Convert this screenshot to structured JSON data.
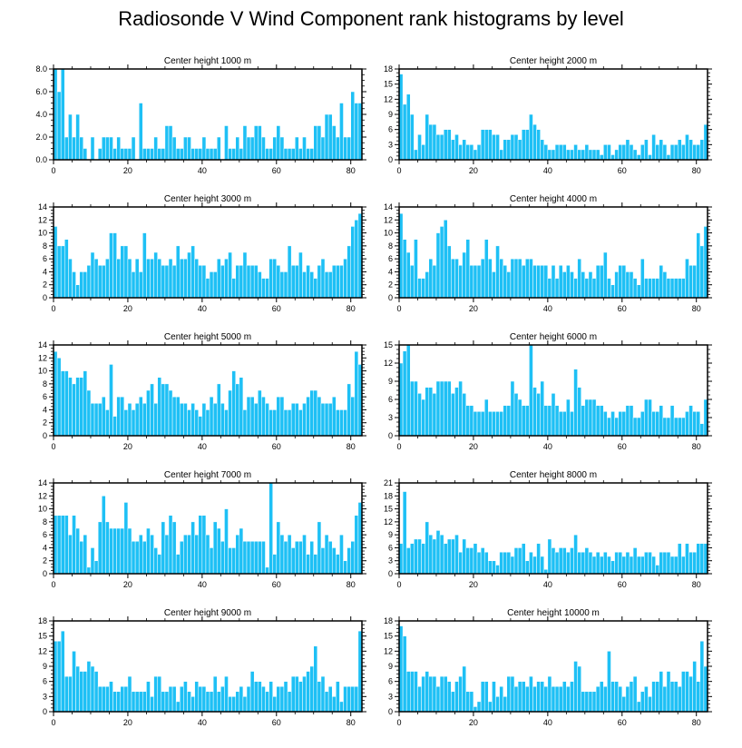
{
  "title": "Radiosonde V Wind Component rank histograms by level",
  "colors": {
    "bar": "#1ec0f5",
    "bar_edge": "#ffffff",
    "axis": "#000000",
    "background": "#ffffff"
  },
  "chart_data": [
    {
      "type": "bar",
      "title": "Center height 1000 m",
      "xlim": [
        0,
        83
      ],
      "ylim": [
        0,
        8
      ],
      "yticks": [
        0,
        2,
        4,
        6,
        8
      ],
      "ytick_labels": [
        "0.0",
        "2.0",
        "4.0",
        "6.0",
        "8.0"
      ],
      "xticks": [
        0,
        20,
        40,
        60,
        80
      ],
      "values": [
        8,
        6,
        8,
        2,
        4,
        2,
        4,
        2,
        1,
        0,
        2,
        0,
        1,
        2,
        2,
        2,
        1,
        2,
        1,
        1,
        1,
        2,
        0,
        5,
        1,
        1,
        1,
        2,
        1,
        1,
        3,
        3,
        2,
        1,
        1,
        2,
        2,
        1,
        1,
        1,
        2,
        1,
        1,
        1,
        2,
        0,
        3,
        1,
        1,
        2,
        1,
        3,
        2,
        2,
        3,
        3,
        2,
        1,
        1,
        2,
        3,
        2,
        1,
        1,
        1,
        2,
        1,
        2,
        1,
        1,
        3,
        3,
        2,
        4,
        4,
        3,
        2,
        5,
        2,
        2,
        6,
        5,
        5
      ]
    },
    {
      "type": "bar",
      "title": "Center height 2000 m",
      "xlim": [
        0,
        83
      ],
      "ylim": [
        0,
        18
      ],
      "yticks": [
        0,
        3,
        6,
        9,
        12,
        15,
        18
      ],
      "ytick_labels": [
        "0",
        "3",
        "6",
        "9",
        "12",
        "15",
        "18"
      ],
      "xticks": [
        0,
        20,
        40,
        60,
        80
      ],
      "values": [
        17,
        11,
        13,
        9,
        2,
        5,
        3,
        9,
        7,
        7,
        5,
        5,
        6,
        6,
        4,
        5,
        3,
        4,
        3,
        3,
        2,
        3,
        6,
        6,
        6,
        5,
        5,
        2,
        4,
        4,
        5,
        5,
        4,
        6,
        6,
        9,
        7,
        6,
        4,
        3,
        2,
        2,
        3,
        3,
        3,
        2,
        2,
        3,
        2,
        2,
        3,
        2,
        2,
        2,
        1,
        3,
        3,
        1,
        2,
        3,
        3,
        4,
        3,
        2,
        1,
        3,
        4,
        1,
        5,
        3,
        4,
        3,
        1,
        3,
        3,
        4,
        3,
        5,
        4,
        3,
        3,
        4,
        7
      ]
    },
    {
      "type": "bar",
      "title": "Center height 3000 m",
      "xlim": [
        0,
        83
      ],
      "ylim": [
        0,
        14
      ],
      "yticks": [
        0,
        2,
        4,
        6,
        8,
        10,
        12,
        14
      ],
      "ytick_labels": [
        "0",
        "2",
        "4",
        "6",
        "8",
        "10",
        "12",
        "14"
      ],
      "xticks": [
        0,
        20,
        40,
        60,
        80
      ],
      "values": [
        11,
        8,
        8,
        9,
        6,
        4,
        2,
        4,
        4,
        5,
        7,
        6,
        5,
        5,
        6,
        10,
        10,
        6,
        8,
        8,
        6,
        4,
        6,
        4,
        10,
        6,
        6,
        7,
        6,
        5,
        5,
        6,
        5,
        8,
        6,
        6,
        7,
        8,
        6,
        5,
        5,
        3,
        4,
        4,
        6,
        5,
        6,
        7,
        3,
        5,
        5,
        7,
        5,
        5,
        5,
        4,
        3,
        3,
        6,
        6,
        5,
        4,
        4,
        8,
        5,
        5,
        7,
        4,
        5,
        4,
        3,
        5,
        6,
        4,
        4,
        5,
        5,
        5,
        6,
        8,
        11,
        12,
        13
      ]
    },
    {
      "type": "bar",
      "title": "Center height 4000 m",
      "xlim": [
        0,
        83
      ],
      "ylim": [
        0,
        14
      ],
      "yticks": [
        0,
        2,
        4,
        6,
        8,
        10,
        12,
        14
      ],
      "ytick_labels": [
        "0",
        "2",
        "4",
        "6",
        "8",
        "10",
        "12",
        "14"
      ],
      "xticks": [
        0,
        20,
        40,
        60,
        80
      ],
      "values": [
        13,
        9,
        7,
        5,
        9,
        3,
        3,
        4,
        6,
        5,
        10,
        11,
        12,
        8,
        6,
        6,
        5,
        7,
        9,
        5,
        5,
        5,
        6,
        9,
        6,
        4,
        8,
        6,
        5,
        4,
        6,
        6,
        6,
        5,
        6,
        6,
        5,
        5,
        5,
        5,
        3,
        5,
        3,
        5,
        4,
        5,
        4,
        3,
        6,
        4,
        3,
        4,
        3,
        5,
        5,
        7,
        3,
        2,
        4,
        5,
        5,
        4,
        4,
        3,
        2,
        6,
        3,
        3,
        3,
        3,
        5,
        4,
        3,
        3,
        3,
        3,
        3,
        6,
        5,
        5,
        10,
        8,
        11
      ]
    },
    {
      "type": "bar",
      "title": "Center height 5000 m",
      "xlim": [
        0,
        83
      ],
      "ylim": [
        0,
        14
      ],
      "yticks": [
        0,
        2,
        4,
        6,
        8,
        10,
        12,
        14
      ],
      "ytick_labels": [
        "0",
        "2",
        "4",
        "6",
        "8",
        "10",
        "12",
        "14"
      ],
      "xticks": [
        0,
        20,
        40,
        60,
        80
      ],
      "values": [
        13,
        12,
        10,
        10,
        9,
        8,
        9,
        9,
        10,
        7,
        5,
        5,
        5,
        6,
        4,
        11,
        3,
        6,
        6,
        4,
        5,
        4,
        5,
        6,
        5,
        7,
        8,
        5,
        9,
        8,
        8,
        7,
        6,
        6,
        5,
        5,
        4,
        5,
        4,
        3,
        5,
        4,
        6,
        5,
        8,
        5,
        4,
        7,
        10,
        8,
        9,
        4,
        6,
        6,
        5,
        7,
        6,
        5,
        4,
        4,
        6,
        6,
        4,
        4,
        5,
        5,
        4,
        5,
        6,
        7,
        7,
        6,
        5,
        5,
        5,
        6,
        4,
        4,
        4,
        8,
        6,
        13,
        11
      ]
    },
    {
      "type": "bar",
      "title": "Center height 6000 m",
      "xlim": [
        0,
        83
      ],
      "ylim": [
        0,
        15
      ],
      "yticks": [
        0,
        3,
        6,
        9,
        12,
        15
      ],
      "ytick_labels": [
        "0",
        "3",
        "6",
        "9",
        "12",
        "15"
      ],
      "xticks": [
        0,
        20,
        40,
        60,
        80
      ],
      "values": [
        12,
        14,
        15,
        9,
        9,
        7,
        6,
        8,
        8,
        7,
        9,
        9,
        9,
        9,
        7,
        8,
        9,
        7,
        5,
        5,
        4,
        4,
        4,
        6,
        4,
        4,
        4,
        4,
        5,
        5,
        9,
        7,
        6,
        5,
        5,
        15,
        8,
        7,
        9,
        5,
        5,
        7,
        5,
        4,
        4,
        6,
        4,
        11,
        8,
        5,
        6,
        6,
        6,
        5,
        5,
        4,
        3,
        4,
        3,
        4,
        4,
        5,
        5,
        3,
        3,
        4,
        6,
        6,
        4,
        4,
        5,
        3,
        3,
        5,
        3,
        3,
        3,
        4,
        5,
        4,
        4,
        2,
        6
      ]
    },
    {
      "type": "bar",
      "title": "Center height 7000 m",
      "xlim": [
        0,
        83
      ],
      "ylim": [
        0,
        14
      ],
      "yticks": [
        0,
        2,
        4,
        6,
        8,
        10,
        12,
        14
      ],
      "ytick_labels": [
        "0",
        "2",
        "4",
        "6",
        "8",
        "10",
        "12",
        "14"
      ],
      "xticks": [
        0,
        20,
        40,
        60,
        80
      ],
      "values": [
        9,
        9,
        9,
        9,
        6,
        9,
        7,
        5,
        6,
        1,
        4,
        2,
        8,
        12,
        8,
        7,
        7,
        7,
        7,
        11,
        7,
        5,
        5,
        6,
        5,
        7,
        6,
        4,
        3,
        8,
        6,
        9,
        8,
        3,
        5,
        6,
        6,
        8,
        6,
        9,
        9,
        6,
        4,
        8,
        7,
        5,
        10,
        4,
        4,
        6,
        7,
        5,
        5,
        5,
        5,
        5,
        5,
        1,
        14,
        3,
        8,
        6,
        5,
        6,
        4,
        5,
        5,
        6,
        3,
        5,
        3,
        8,
        4,
        6,
        5,
        4,
        3,
        6,
        2,
        4,
        5,
        9,
        11
      ]
    },
    {
      "type": "bar",
      "title": "Center height 8000 m",
      "xlim": [
        0,
        83
      ],
      "ylim": [
        0,
        21
      ],
      "yticks": [
        0,
        3,
        6,
        9,
        12,
        15,
        18,
        21
      ],
      "ytick_labels": [
        "0",
        "3",
        "6",
        "9",
        "12",
        "15",
        "18",
        "21"
      ],
      "xticks": [
        0,
        20,
        40,
        60,
        80
      ],
      "values": [
        7,
        19,
        6,
        7,
        8,
        8,
        7,
        12,
        9,
        8,
        10,
        9,
        7,
        8,
        8,
        9,
        5,
        8,
        6,
        6,
        7,
        5,
        6,
        5,
        3,
        3,
        2,
        5,
        5,
        5,
        4,
        6,
        6,
        7,
        3,
        5,
        4,
        7,
        4,
        1,
        8,
        6,
        5,
        6,
        6,
        5,
        6,
        9,
        5,
        5,
        6,
        5,
        4,
        5,
        4,
        5,
        4,
        3,
        5,
        5,
        4,
        5,
        4,
        6,
        4,
        4,
        5,
        5,
        4,
        2,
        5,
        5,
        5,
        4,
        4,
        7,
        4,
        7,
        5,
        5,
        7,
        7,
        7
      ]
    },
    {
      "type": "bar",
      "title": "Center height 9000 m",
      "xlim": [
        0,
        83
      ],
      "ylim": [
        0,
        18
      ],
      "yticks": [
        0,
        3,
        6,
        9,
        12,
        15,
        18
      ],
      "ytick_labels": [
        "0",
        "3",
        "6",
        "9",
        "12",
        "15",
        "18"
      ],
      "xticks": [
        0,
        20,
        40,
        60,
        80
      ],
      "values": [
        14,
        14,
        16,
        7,
        7,
        12,
        9,
        8,
        8,
        10,
        9,
        8,
        5,
        5,
        5,
        6,
        4,
        4,
        5,
        5,
        7,
        4,
        4,
        4,
        4,
        6,
        3,
        7,
        7,
        4,
        4,
        5,
        5,
        2,
        5,
        6,
        4,
        3,
        6,
        5,
        5,
        4,
        4,
        7,
        4,
        5,
        7,
        3,
        3,
        4,
        5,
        3,
        5,
        8,
        6,
        6,
        5,
        4,
        6,
        3,
        5,
        5,
        6,
        4,
        7,
        7,
        6,
        7,
        8,
        9,
        13,
        6,
        7,
        4,
        5,
        3,
        6,
        2,
        5,
        5,
        5,
        5,
        16
      ]
    },
    {
      "type": "bar",
      "title": "Center height 10000 m",
      "xlim": [
        0,
        83
      ],
      "ylim": [
        0,
        18
      ],
      "yticks": [
        0,
        3,
        6,
        9,
        12,
        15,
        18
      ],
      "ytick_labels": [
        "0",
        "3",
        "6",
        "9",
        "12",
        "15",
        "18"
      ],
      "xticks": [
        0,
        20,
        40,
        60,
        80
      ],
      "values": [
        17,
        15,
        8,
        8,
        8,
        5,
        7,
        8,
        7,
        7,
        5,
        7,
        7,
        6,
        4,
        6,
        7,
        9,
        4,
        4,
        1,
        2,
        6,
        6,
        2,
        6,
        3,
        5,
        3,
        7,
        7,
        5,
        6,
        6,
        5,
        7,
        5,
        6,
        6,
        5,
        7,
        5,
        5,
        5,
        6,
        5,
        6,
        10,
        9,
        4,
        4,
        4,
        4,
        5,
        6,
        5,
        12,
        6,
        6,
        5,
        3,
        5,
        6,
        7,
        2,
        4,
        5,
        3,
        6,
        6,
        8,
        5,
        8,
        6,
        6,
        5,
        8,
        8,
        7,
        10,
        6,
        14,
        9
      ]
    }
  ]
}
